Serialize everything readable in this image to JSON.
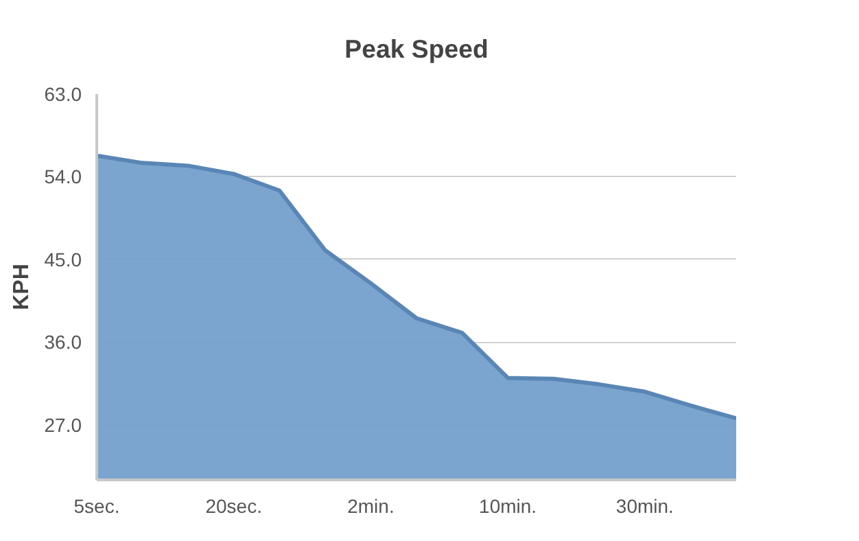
{
  "chart_data": {
    "type": "area",
    "title": "Peak Speed",
    "ylabel": "KPH",
    "categories": [
      "5sec.",
      null,
      null,
      "20sec.",
      null,
      null,
      "2min.",
      null,
      null,
      "10min.",
      null,
      null,
      "30min.",
      null,
      null
    ],
    "series": [
      {
        "color": "#74a0cc",
        "values": [
          56.3,
          55.5,
          55.2,
          54.3,
          52.5,
          46.0,
          42.4,
          38.6,
          37.0,
          32.1,
          32.0,
          31.4,
          30.6,
          29.1,
          27.7
        ]
      }
    ],
    "ylim": [
      21,
      63
    ],
    "yticks": [
      {
        "value": 27,
        "label": "27.0"
      },
      {
        "value": 36,
        "label": "36.0"
      },
      {
        "value": 45,
        "label": "45.0"
      },
      {
        "value": 54,
        "label": "54.0"
      },
      {
        "value": 63,
        "label": "63.0"
      }
    ],
    "grid": "y"
  }
}
